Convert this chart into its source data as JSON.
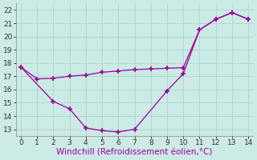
{
  "line1_x": [
    0,
    1,
    2,
    3,
    4,
    5,
    6,
    7,
    8,
    9,
    10,
    11,
    12,
    13,
    14
  ],
  "line1_y": [
    17.7,
    16.8,
    16.85,
    17.0,
    17.1,
    17.3,
    17.4,
    17.5,
    17.55,
    17.6,
    17.65,
    20.5,
    21.3,
    21.8,
    21.3
  ],
  "line2_x": [
    0,
    2,
    3,
    4,
    5,
    6,
    7,
    9,
    10,
    11,
    12,
    13,
    14
  ],
  "line2_y": [
    17.7,
    15.1,
    14.55,
    13.1,
    12.9,
    12.8,
    13.0,
    15.9,
    17.2,
    20.5,
    21.3,
    21.8,
    21.3
  ],
  "line_color": "#9b009b",
  "marker": "+",
  "markersize": 5,
  "markeredgewidth": 1.2,
  "linewidth": 0.9,
  "xlabel": "Windchill (Refroidissement éolien,°C)",
  "xlim": [
    -0.3,
    14.3
  ],
  "ylim": [
    12.5,
    22.5
  ],
  "xticks": [
    0,
    1,
    2,
    3,
    4,
    5,
    6,
    7,
    8,
    9,
    10,
    11,
    12,
    13,
    14
  ],
  "yticks": [
    13,
    14,
    15,
    16,
    17,
    18,
    19,
    20,
    21,
    22
  ],
  "grid_color": "#b0d8d0",
  "bg_color": "#cceae6",
  "tick_fontsize": 6.5,
  "xlabel_fontsize": 7.5,
  "xlabel_color": "#9b009b"
}
